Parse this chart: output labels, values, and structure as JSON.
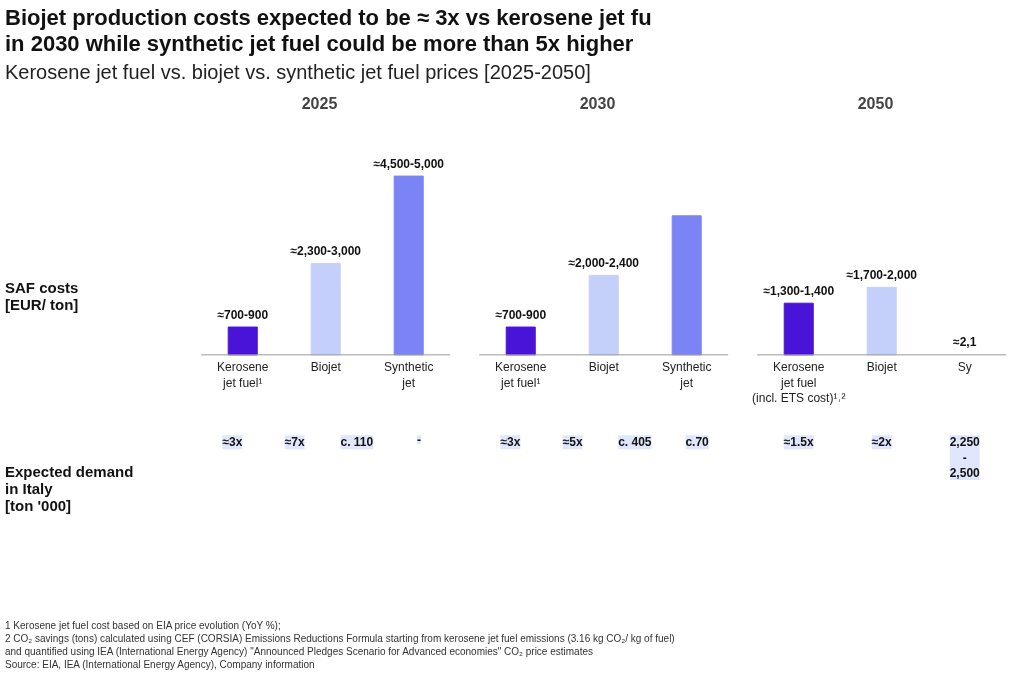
{
  "chart_data": [
    {
      "type": "other",
      "title": "Biojet production costs expected to be ≈ 3x vs kerosene jet fu\nin 2030 while synthetic jet fuel could be more than 5x higher",
      "subtitle": "Kerosene jet fuel vs. biojet vs. synthetic jet fuel prices [2025-2050]",
      "annotations": [
        "SAF costs\n[EUR/ ton]",
        "Expected demand\nin Italy\n[ton '000]",
        "1  Kerosene jet fuel cost based on EIA price evolution (YoY %);",
        "2  CO₂ savings (tons) calculated using CEF (CORSIA) Emissions Reductions Formula starting from kerosene jet fuel emissions (3.16 kg CO₂/ kg of fuel)\n    and quantified using IEA (International Energy Agency) \"Announced Pledges Scenario for Advanced economies\" CO₂ price estimates",
        "Source: EIA, IEA (International Energy Agency), Company information"
      ]
    },
    {
      "type": "bar",
      "title": "2025",
      "categories": [
        "Kerosene\njet fuel¹",
        "Biojet",
        "Synthetic\njet"
      ],
      "values": [
        700,
        2300,
        4500
      ],
      "colors": [
        "#4a14d8",
        "#c5d0fa",
        "#7b84f5"
      ],
      "value_labels": [
        "≈700-900",
        "≈2,300-3,000",
        "≈4,500-5,000"
      ],
      "annotations": [
        "≈3x",
        "≈7x",
        "c. 110",
        "-"
      ]
    },
    {
      "type": "bar",
      "title": "2030",
      "categories": [
        "Kerosene\njet fuel¹",
        "Biojet",
        "Synthetic\njet"
      ],
      "values": [
        700,
        2000,
        3500
      ],
      "colors": [
        "#4a14d8",
        "#c5d0fa",
        "#7b84f5"
      ],
      "value_labels": [
        "≈700-900",
        "≈2,000-2,400",
        null
      ],
      "annotations": [
        "≈3x",
        "≈5x",
        "c. 405",
        "c.70"
      ]
    },
    {
      "type": "bar",
      "title": "2050",
      "categories": [
        "Kerosene\njet fuel\n(incl. ETS cost)¹˒²",
        "Biojet",
        "Sy"
      ],
      "values": [
        1300,
        1700,
        null
      ],
      "colors": [
        "#4a14d8",
        "#c5d0fa",
        "#7b84f5"
      ],
      "value_labels": [
        "≈1,300-1,400",
        "≈1,700-2,000",
        "≈2,1"
      ],
      "annotations": [
        "≈1.5x",
        "≈2x",
        "2,250\n-\n2,500"
      ]
    }
  ]
}
